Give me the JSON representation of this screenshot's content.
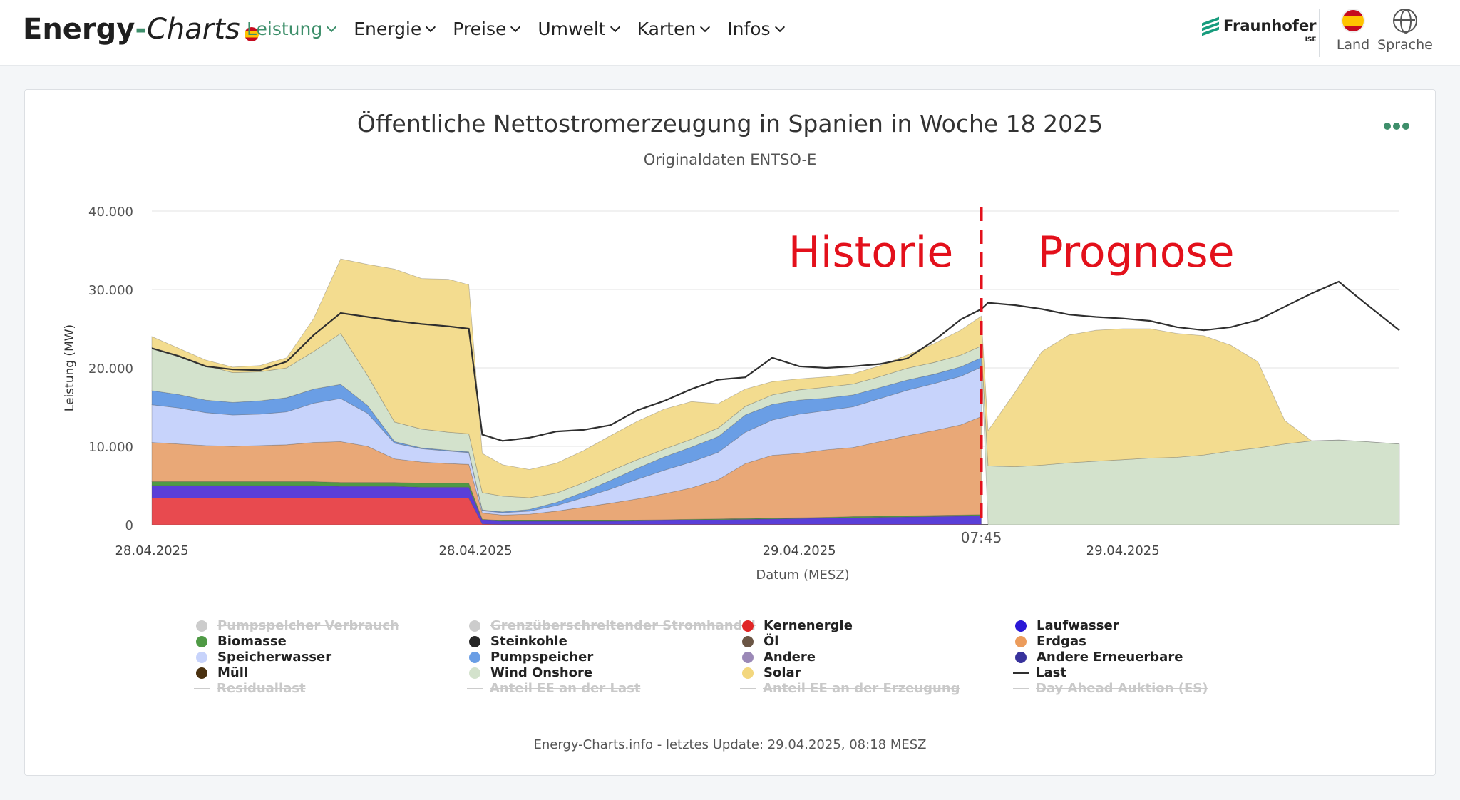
{
  "header": {
    "logo_bold": "Energy",
    "logo_dash": "-",
    "logo_italic": "Charts",
    "nav": [
      {
        "label": "Leistung",
        "active": true
      },
      {
        "label": "Energie"
      },
      {
        "label": "Preise"
      },
      {
        "label": "Umwelt"
      },
      {
        "label": "Karten"
      },
      {
        "label": "Infos"
      }
    ],
    "brand": "Fraunhofer",
    "brand_sub": "ISE",
    "country_label": "Land",
    "language_label": "Sprache"
  },
  "colors": {
    "accent": "#3e8f6b",
    "annotation_red": "#e3101b",
    "kernenergie": "#e84a4f",
    "laufwasser": "#5a3fd8",
    "biomasse": "#4f9a45",
    "erdgas": "#e9a877",
    "speicherwasser": "#c7d3fb",
    "pumpspeicher": "#6a9ee5",
    "wind": "#d3e2cc",
    "solar": "#f3dc8f",
    "last": "#2f2f2f"
  },
  "chart_data": {
    "type": "area",
    "title": "Öffentliche Nettostromerzeugung in Spanien in Woche 18 2025",
    "subtitle": "Originaldaten ENTSO-E",
    "xlabel": "Datum (MESZ)",
    "ylabel": "Leistung (MW)",
    "ylim": [
      0,
      40000
    ],
    "yticks": [
      "0",
      "10.000",
      "20.000",
      "30.000",
      "40.000"
    ],
    "xticks": [
      "28.04.2025",
      "28.04.2025",
      "29.04.2025",
      "29.04.2025"
    ],
    "x_hours": [
      0,
      12,
      24,
      36
    ],
    "x_range_hours": [
      0,
      46.25
    ],
    "now_label": "07:45",
    "now_hour": 30.75,
    "grid": true,
    "legend_position": "bottom",
    "annotations": [
      "Historie",
      "Prognose"
    ],
    "x": [
      0,
      1,
      2,
      3,
      4,
      5,
      6,
      7,
      8,
      9,
      10,
      11,
      11.75,
      12.25,
      13,
      14,
      15,
      16,
      17,
      18,
      19,
      20,
      21,
      22,
      23,
      24,
      25,
      26,
      27,
      28,
      29,
      30,
      30.75,
      31,
      32,
      33,
      34,
      35,
      36,
      37,
      38,
      39,
      40,
      41,
      42,
      43,
      44,
      45,
      46.25
    ],
    "series": [
      {
        "name": "Kernenergie",
        "values": [
          3400,
          3400,
          3400,
          3400,
          3400,
          3400,
          3400,
          3400,
          3400,
          3400,
          3400,
          3400,
          3400,
          100,
          50,
          50,
          50,
          50,
          50,
          50,
          50,
          50,
          50,
          50,
          50,
          50,
          50,
          50,
          50,
          50,
          50,
          50,
          50,
          null,
          null,
          null,
          null,
          null,
          null,
          null,
          null,
          null,
          null,
          null,
          null,
          null,
          null,
          null,
          null
        ]
      },
      {
        "name": "Laufwasser",
        "values": [
          1600,
          1600,
          1600,
          1600,
          1600,
          1600,
          1600,
          1500,
          1500,
          1500,
          1400,
          1400,
          1400,
          500,
          400,
          400,
          400,
          400,
          400,
          450,
          500,
          550,
          600,
          650,
          700,
          750,
          800,
          850,
          900,
          950,
          1000,
          1050,
          1100,
          null,
          null,
          null,
          null,
          null,
          null,
          null,
          null,
          null,
          null,
          null,
          null,
          null,
          null,
          null,
          null
        ]
      },
      {
        "name": "Biomasse",
        "values": [
          500,
          500,
          500,
          500,
          500,
          500,
          500,
          500,
          500,
          500,
          500,
          500,
          500,
          100,
          100,
          100,
          100,
          100,
          100,
          100,
          100,
          100,
          100,
          100,
          100,
          100,
          100,
          150,
          150,
          150,
          150,
          150,
          150,
          null,
          null,
          null,
          null,
          null,
          null,
          null,
          null,
          null,
          null,
          null,
          null,
          null,
          null,
          null,
          null
        ]
      },
      {
        "name": "Erdgas",
        "values": [
          5000,
          4800,
          4600,
          4500,
          4600,
          4700,
          5000,
          5200,
          4600,
          3000,
          2700,
          2500,
          2400,
          800,
          700,
          800,
          1200,
          1700,
          2200,
          2700,
          3300,
          4000,
          5000,
          7000,
          8000,
          8200,
          8600,
          8800,
          9500,
          10200,
          10800,
          11500,
          12500,
          null,
          null,
          null,
          null,
          null,
          null,
          null,
          null,
          null,
          null,
          null,
          null,
          null,
          null,
          null,
          null
        ]
      },
      {
        "name": "Speicherwasser",
        "values": [
          4800,
          4600,
          4200,
          4000,
          4000,
          4200,
          5000,
          5500,
          4200,
          2000,
          1700,
          1600,
          1500,
          300,
          300,
          400,
          700,
          1200,
          1800,
          2500,
          3000,
          3300,
          3500,
          4000,
          4500,
          5000,
          5000,
          5200,
          5500,
          5800,
          6000,
          6200,
          6300,
          null,
          null,
          null,
          null,
          null,
          null,
          null,
          null,
          null,
          null,
          null,
          null,
          null,
          null,
          null,
          null
        ]
      },
      {
        "name": "Pumpspeicher",
        "values": [
          1800,
          1700,
          1600,
          1600,
          1700,
          1800,
          1800,
          1800,
          1000,
          200,
          100,
          100,
          100,
          100,
          100,
          200,
          400,
          700,
          1100,
          1400,
          1700,
          1900,
          2000,
          2200,
          2000,
          1800,
          1600,
          1500,
          1400,
          1300,
          1200,
          1200,
          1200,
          null,
          null,
          null,
          null,
          null,
          null,
          null,
          null,
          null,
          null,
          null,
          null,
          null,
          null,
          null,
          null
        ]
      },
      {
        "name": "Wind Onshore",
        "values": [
          5500,
          5000,
          4400,
          3800,
          3700,
          3800,
          4800,
          6500,
          3800,
          2500,
          2400,
          2300,
          2300,
          2200,
          2000,
          1500,
          1200,
          1200,
          1200,
          1100,
          1000,
          1000,
          1100,
          1100,
          1200,
          1300,
          1400,
          1400,
          1400,
          1500,
          1500,
          1500,
          1500,
          7500,
          7400,
          7600,
          7900,
          8100,
          8300,
          8500,
          8600,
          8900,
          9400,
          9800,
          10300,
          10700,
          10800,
          10600,
          10300
        ]
      },
      {
        "name": "Solar",
        "values": [
          1400,
          900,
          700,
          700,
          800,
          1300,
          4200,
          9500,
          14200,
          19500,
          19200,
          19500,
          19000,
          5000,
          4000,
          3600,
          3800,
          4100,
          4500,
          4900,
          5100,
          4800,
          3100,
          2200,
          1700,
          1400,
          1300,
          1300,
          1400,
          1700,
          2400,
          3200,
          3800,
          4500,
          9500,
          14500,
          16300,
          16700,
          16700,
          16500,
          15800,
          15200,
          13500,
          11000,
          3000,
          0,
          0,
          0,
          0
        ]
      },
      {
        "name": "Last",
        "line": true,
        "values": [
          22500,
          21500,
          20200,
          19800,
          19700,
          20800,
          24200,
          27000,
          26500,
          26000,
          25600,
          25300,
          25000,
          11500,
          10700,
          11100,
          11900,
          12100,
          12700,
          14600,
          15800,
          17300,
          18500,
          18800,
          21300,
          20200,
          20000,
          20200,
          20500,
          21200,
          23500,
          26200,
          27500,
          28300,
          28000,
          27500,
          26800,
          26500,
          26300,
          26000,
          25200,
          24800,
          25200,
          26100,
          27800,
          29500,
          31000,
          28200,
          24800
        ]
      }
    ],
    "legend": [
      {
        "name": "Pumpspeicher Verbrauch",
        "kind": "dot",
        "color": "#cccccc",
        "active": false
      },
      {
        "name": "Biomasse",
        "kind": "dot",
        "color": "#4f9a45",
        "active": true
      },
      {
        "name": "Speicherwasser",
        "kind": "dot",
        "color": "#c7d3fb",
        "active": true
      },
      {
        "name": "Müll",
        "kind": "dot",
        "color": "#4a3110",
        "active": true
      },
      {
        "name": "Residuallast",
        "kind": "line",
        "color": "#cccccc",
        "active": false
      },
      {
        "name": "Grenzüberschreitender Stromhandel",
        "kind": "dot",
        "color": "#cccccc",
        "active": false
      },
      {
        "name": "Steinkohle",
        "kind": "dot",
        "color": "#262626",
        "active": true
      },
      {
        "name": "Pumpspeicher",
        "kind": "dot",
        "color": "#6a9ee5",
        "active": true
      },
      {
        "name": "Wind Onshore",
        "kind": "dot",
        "color": "#d3e2cc",
        "active": true
      },
      {
        "name": "Anteil EE an der Last",
        "kind": "line",
        "color": "#cccccc",
        "active": false
      },
      {
        "name": "Kernenergie",
        "kind": "dot",
        "color": "#e02525",
        "active": true
      },
      {
        "name": "Öl",
        "kind": "dot",
        "color": "#6b5645",
        "active": true
      },
      {
        "name": "Andere",
        "kind": "dot",
        "color": "#9b89b7",
        "active": true
      },
      {
        "name": "Solar",
        "kind": "dot",
        "color": "#f3d77e",
        "active": true
      },
      {
        "name": "Anteil EE an der Erzeugung",
        "kind": "line",
        "color": "#cccccc",
        "active": false
      },
      {
        "name": "Laufwasser",
        "kind": "dot",
        "color": "#2a18d6",
        "active": true
      },
      {
        "name": "Erdgas",
        "kind": "dot",
        "color": "#ec9c5c",
        "active": true
      },
      {
        "name": "Andere Erneuerbare",
        "kind": "dot",
        "color": "#38329c",
        "active": true
      },
      {
        "name": "Last",
        "kind": "line",
        "color": "#2f2f2f",
        "active": true
      },
      {
        "name": "Day Ahead Auktion (ES)",
        "kind": "line",
        "color": "#cccccc",
        "active": false
      }
    ]
  },
  "footer": "Energy-Charts.info - letztes Update: 29.04.2025, 08:18 MESZ"
}
